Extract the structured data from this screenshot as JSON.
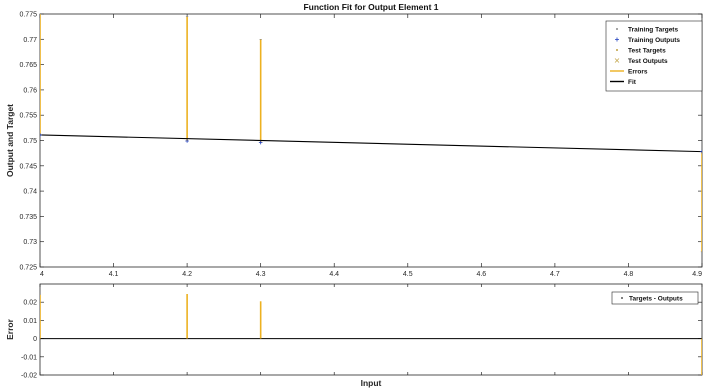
{
  "chart_data": [
    {
      "type": "line",
      "title": "Function Fit for Output Element 1",
      "ylabel": "Output and Target",
      "xlim": [
        4,
        4.9
      ],
      "ylim": [
        0.725,
        0.775
      ],
      "xticks": [
        "4",
        "4.1",
        "4.2",
        "4.3",
        "4.4",
        "4.5",
        "4.6",
        "4.7",
        "4.8",
        "4.9"
      ],
      "yticks": [
        "0.725",
        "0.73",
        "0.735",
        "0.74",
        "0.745",
        "0.75",
        "0.755",
        "0.76",
        "0.765",
        "0.77",
        "0.775"
      ],
      "legend_position": "top-right",
      "legend": [
        "Training Targets",
        "Training Outputs",
        "Test Targets",
        "Test Outputs",
        "Errors",
        "Fit"
      ],
      "fit": {
        "x": [
          4,
          4.9
        ],
        "y": [
          0.7511,
          0.7478
        ]
      },
      "errors": [
        {
          "x": 4.0,
          "y_from": 0.7511,
          "y_to": 0.775
        },
        {
          "x": 4.2,
          "y_from": 0.7499,
          "y_to": 0.7745
        },
        {
          "x": 4.3,
          "y_from": 0.7496,
          "y_to": 0.77
        },
        {
          "x": 4.9,
          "y_from": 0.7478,
          "y_to": 0.728
        }
      ],
      "grid": false,
      "colors": {
        "fit": "#000000",
        "errors": "#edb120",
        "axes": "#262626"
      }
    },
    {
      "type": "bar",
      "ylabel": "Error",
      "xlabel": "Input",
      "xlim": [
        4,
        4.9
      ],
      "ylim": [
        -0.02,
        0.03
      ],
      "yticks": [
        "-0.02",
        "-0.01",
        "0",
        "0.01",
        "0.02"
      ],
      "legend_position": "top-right",
      "legend": [
        "Targets - Outputs"
      ],
      "x": [
        4.0,
        4.2,
        4.3,
        4.9
      ],
      "values": [
        0.024,
        0.0245,
        0.0205,
        -0.02
      ],
      "zero_line": true,
      "colors": {
        "errors": "#edb120",
        "zero_line": "#000000"
      }
    }
  ]
}
